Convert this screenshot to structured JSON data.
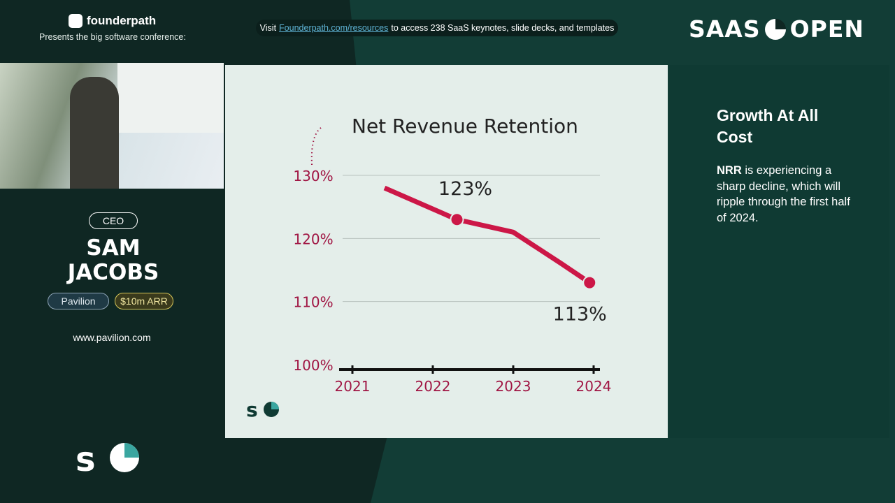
{
  "header": {
    "brand": "founderpath",
    "presents": "Presents the big software conference:",
    "banner": {
      "before": "Visit",
      "link": "Founderpath.com/resources",
      "after": "to access 238 SaaS keynotes, slide decks, and templates"
    },
    "logo": {
      "left": "SAAS",
      "right": "OPEN"
    }
  },
  "speaker": {
    "role": "CEO",
    "name": [
      "SAM",
      "JACOBS"
    ],
    "tags": [
      "Pavilion",
      "$10m ARR"
    ],
    "website": "www.pavilion.com"
  },
  "panel": {
    "title": "Growth At All Cost",
    "bold": "NRR",
    "text": "is experiencing a sharp decline, which will ripple through the first half of 2024."
  },
  "chart_data": {
    "type": "line",
    "title": "Net Revenue Retention",
    "x": [
      2021.4,
      2022.3,
      2023.0,
      2023.6,
      2023.95
    ],
    "series": [
      {
        "color": "#cc1747",
        "values": [
          128,
          123,
          121,
          116,
          113
        ],
        "value_labels": [
          null,
          "123%",
          null,
          null,
          "113%"
        ]
      }
    ],
    "xlim": [
      2021,
      2024
    ],
    "xticks": [
      2021,
      2022,
      2023,
      2024
    ],
    "ylim": [
      100,
      130
    ],
    "yticks": [
      {
        "value": 100,
        "label": "100%"
      },
      {
        "value": 110,
        "label": "110%"
      },
      {
        "value": 120,
        "label": "120%"
      },
      {
        "value": 130,
        "label": "130%"
      }
    ],
    "grid": true
  }
}
